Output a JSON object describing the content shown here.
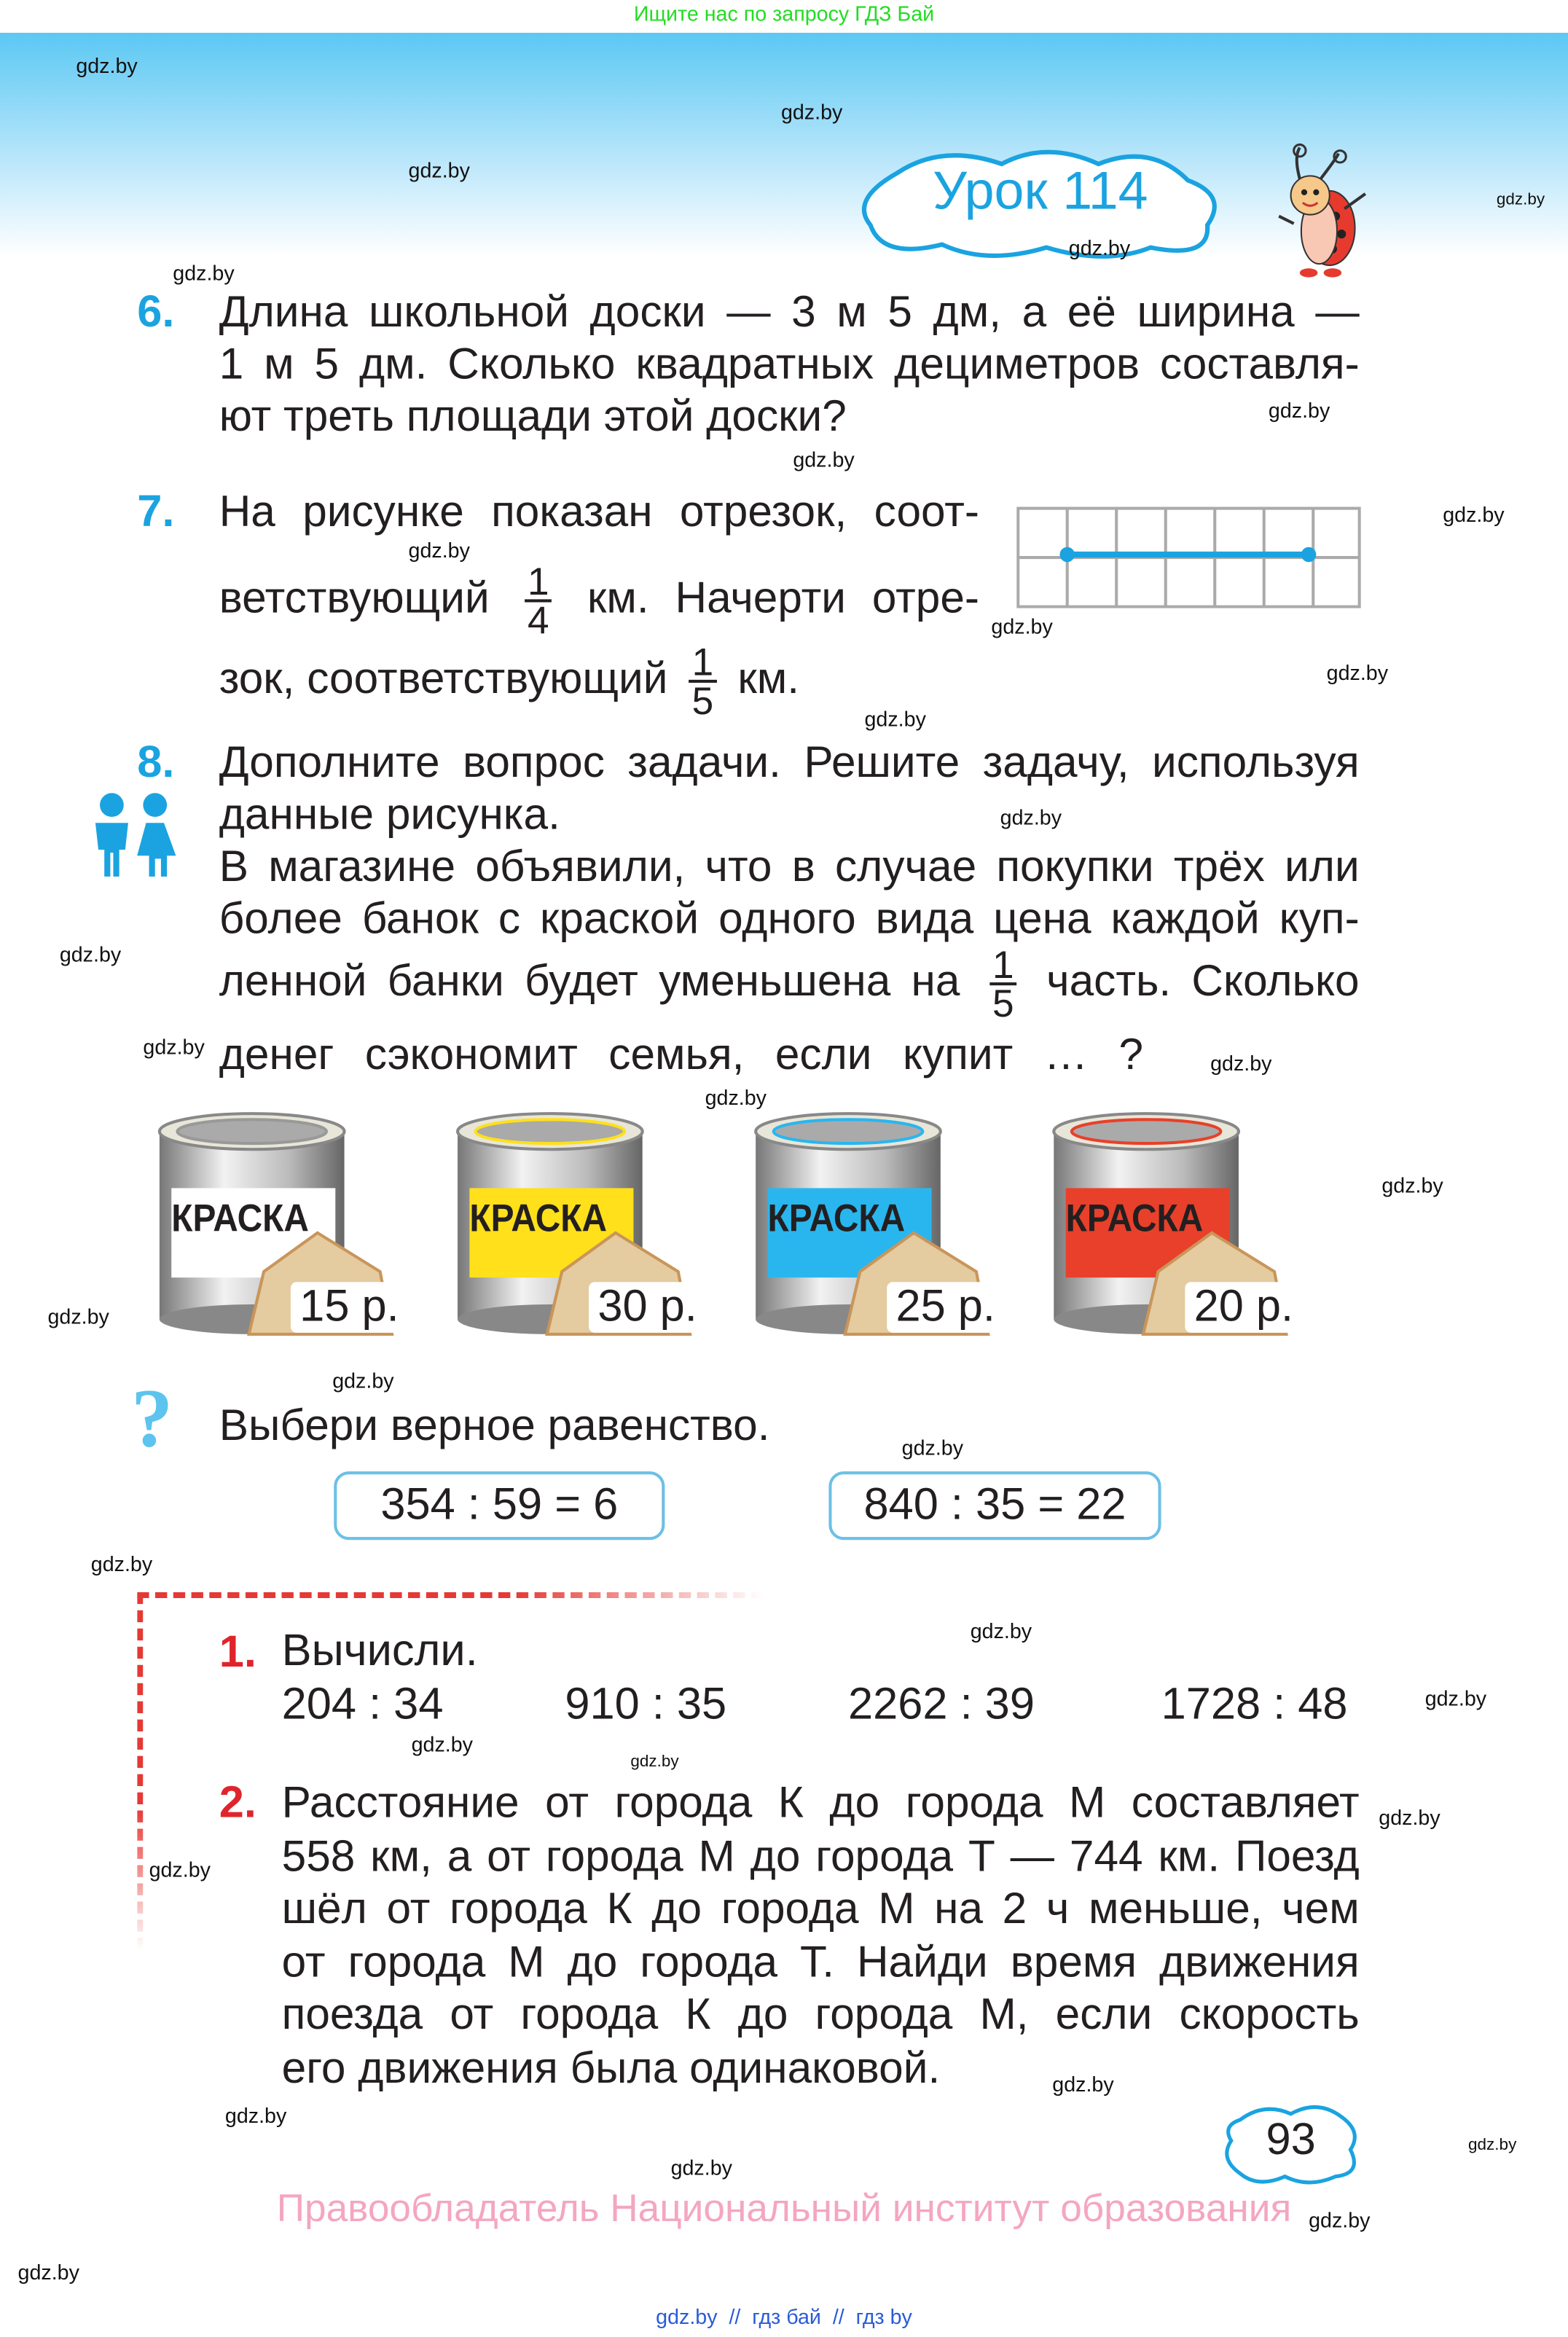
{
  "top_note": "Ищите нас по запросу ГДЗ Бай",
  "watermark": "gdz.by",
  "lesson": {
    "title": "Урок 114",
    "color": "#1aa3e0"
  },
  "task6": {
    "number": "6.",
    "lines": [
      "Длина школьной доски — 3 м 5 дм, а её ширина —",
      "1 м 5 дм. Сколько квадратных дециметров составля-",
      "ют треть площади этой доски?"
    ]
  },
  "task7": {
    "number": "7.",
    "line1": "На рисунке показан отрезок, соот-",
    "line2_a": "ветствующий",
    "frac1_num": "1",
    "frac1_den": "4",
    "line2_b": "км. Начерти отре-",
    "line3_a": "зок, соответствующий",
    "frac2_num": "1",
    "frac2_den": "5",
    "line3_b": "км."
  },
  "task8": {
    "number": "8.",
    "lines": [
      "Дополните вопрос задачи. Решите задачу, используя",
      "данные рисунка.",
      "В магазине объявили, что в случае покупки трёх или",
      "более банок с краской одного вида цена каждой куп-"
    ],
    "line5_a": "ленной банки будет уменьшена на",
    "frac_num": "1",
    "frac_den": "5",
    "line5_b": "часть. Сколько",
    "line6": "денег сэкономит семья, если купит … ?",
    "cans": [
      {
        "label": "КРАСКА",
        "price": "15 р.",
        "color": "#ffffff"
      },
      {
        "label": "КРАСКА",
        "price": "30 р.",
        "color": "#ffe01a"
      },
      {
        "label": "КРАСКА",
        "price": "25 р.",
        "color": "#29b6ef"
      },
      {
        "label": "КРАСКА",
        "price": "20 р.",
        "color": "#e8402a"
      }
    ]
  },
  "question": {
    "text": "Выбери верное равенство.",
    "options": [
      "354 : 59 = 6",
      "840 : 35 = 22"
    ]
  },
  "task1": {
    "number": "1.",
    "title": "Вычисли.",
    "items": [
      "204 : 34",
      "910 : 35",
      "2262 : 39",
      "1728 : 48"
    ]
  },
  "task2": {
    "number": "2.",
    "lines": [
      "Расстояние от города К до города М составляет",
      "558 км, а от города М до города Т — 744 км. Поезд",
      "шёл от города К до города М на 2 ч меньше, чем",
      "от города М до города Т. Найди время движения",
      "поезда от города К до города М, если скорость",
      "его движения была одинаковой."
    ]
  },
  "page_number": "93",
  "copyright": "Правообладатель Национальный институт образования",
  "bottom_links": "gdz.by  //  гдз бай  //  гдз by"
}
